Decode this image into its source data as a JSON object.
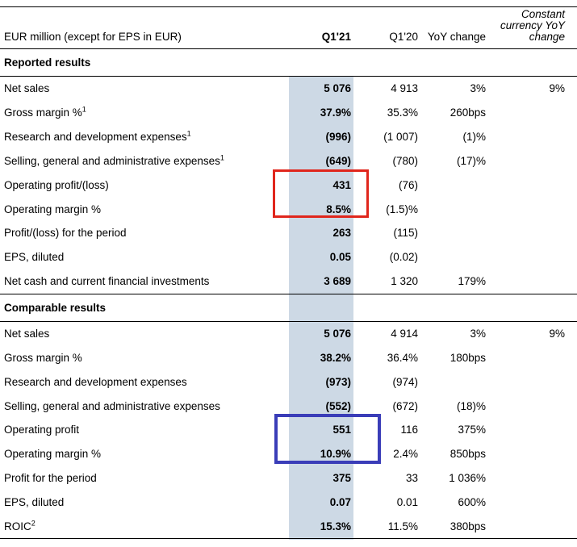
{
  "header": {
    "row_label": "EUR million (except for EPS in EUR)",
    "col_q121": "Q1'21",
    "col_q120": "Q1'20",
    "col_yoy": "YoY change",
    "col_cc": "Constant currency YoY change"
  },
  "colors": {
    "column_highlight": "#cdd9e5",
    "red_annotation_box": "#e0261c",
    "blue_annotation_box": "#3a3db8"
  },
  "sections": [
    {
      "title": "Reported results",
      "rows": [
        {
          "label": "Net sales",
          "sup": "",
          "q121": "5 076",
          "q120": "4 913",
          "yoy": "3%",
          "cc": "9%"
        },
        {
          "label": "Gross margin %",
          "sup": "1",
          "q121": "37.9%",
          "q120": "35.3%",
          "yoy": "260bps",
          "cc": ""
        },
        {
          "label": "Research and development expenses",
          "sup": "1",
          "q121": "(996)",
          "q120": "(1 007)",
          "yoy": "(1)%",
          "cc": ""
        },
        {
          "label": "Selling, general and administrative expenses",
          "sup": "1",
          "q121": "(649)",
          "q120": "(780)",
          "yoy": "(17)%",
          "cc": ""
        },
        {
          "label": "Operating profit/(loss)",
          "sup": "",
          "q121": "431",
          "q120": "(76)",
          "yoy": "",
          "cc": ""
        },
        {
          "label": "Operating margin %",
          "sup": "",
          "q121": "8.5%",
          "q120": "(1.5)%",
          "yoy": "",
          "cc": ""
        },
        {
          "label": "Profit/(loss) for the period",
          "sup": "",
          "q121": "263",
          "q120": "(115)",
          "yoy": "",
          "cc": ""
        },
        {
          "label": "EPS, diluted",
          "sup": "",
          "q121": "0.05",
          "q120": "(0.02)",
          "yoy": "",
          "cc": ""
        },
        {
          "label": "Net cash and current financial investments",
          "sup": "",
          "q121": "3 689",
          "q120": "1 320",
          "yoy": "179%",
          "cc": ""
        }
      ]
    },
    {
      "title": "Comparable results",
      "rows": [
        {
          "label": "Net sales",
          "sup": "",
          "q121": "5 076",
          "q120": "4 914",
          "yoy": "3%",
          "cc": "9%"
        },
        {
          "label": "Gross margin %",
          "sup": "",
          "q121": "38.2%",
          "q120": "36.4%",
          "yoy": "180bps",
          "cc": ""
        },
        {
          "label": "Research and development expenses",
          "sup": "",
          "q121": "(973)",
          "q120": "(974)",
          "yoy": "",
          "cc": ""
        },
        {
          "label": "Selling, general and administrative expenses",
          "sup": "",
          "q121": "(552)",
          "q120": "(672)",
          "yoy": "(18)%",
          "cc": ""
        },
        {
          "label": "Operating profit",
          "sup": "",
          "q121": "551",
          "q120": "116",
          "yoy": "375%",
          "cc": ""
        },
        {
          "label": "Operating margin %",
          "sup": "",
          "q121": "10.9%",
          "q120": "2.4%",
          "yoy": "850bps",
          "cc": ""
        },
        {
          "label": "Profit for the period",
          "sup": "",
          "q121": "375",
          "q120": "33",
          "yoy": "1 036%",
          "cc": ""
        },
        {
          "label": "EPS, diluted",
          "sup": "",
          "q121": "0.07",
          "q120": "0.01",
          "yoy": "600%",
          "cc": ""
        },
        {
          "label": "ROIC",
          "sup": "2",
          "q121": "15.3%",
          "q120": "11.5%",
          "yoy": "380bps",
          "cc": ""
        }
      ]
    }
  ]
}
